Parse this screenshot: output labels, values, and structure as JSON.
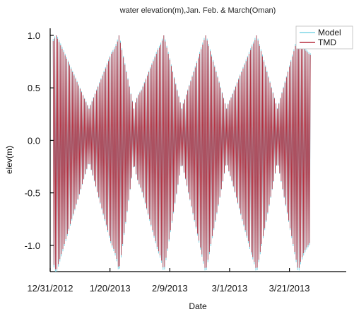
{
  "chart_data": {
    "type": "line",
    "title": "water elevation(m),Jan. Feb. & March(Oman)",
    "xlabel": "Date",
    "ylabel": "elev(m)",
    "x_range": [
      "2012-12-31",
      "2013-04-09"
    ],
    "data_x_range": [
      "2013-01-01",
      "2013-03-28"
    ],
    "ylim": [
      -1.25,
      1.0
    ],
    "x_ticks": [
      "12/31/2012",
      "1/20/2013",
      "2/9/2013",
      "3/1/2013",
      "3/21/2013"
    ],
    "y_ticks": [
      "-1.0",
      "-0.5",
      "0.0",
      "0.5",
      "1.0"
    ],
    "grid": false,
    "legend": "top-right",
    "sampling": "every 6 hours",
    "series": [
      {
        "name": "Model",
        "color": "#7fd6e6",
        "x_start": "2013-01-01",
        "x_end": "2013-03-28",
        "pattern": "semi-diurnal tide with spring-neap modulation",
        "spring_tides": [
          "2013-01-02",
          "2013-01-23",
          "2013-02-07",
          "2013-02-21",
          "2013-03-10",
          "2013-03-24"
        ],
        "neap_tides": [
          "2013-01-13",
          "2013-01-28",
          "2013-02-13",
          "2013-02-28",
          "2013-03-17"
        ],
        "max": 1.0,
        "min": -1.25,
        "neap_range": [
          -0.2,
          0.3
        ]
      },
      {
        "name": "TMD",
        "color": "#b52e3e",
        "x_start": "2013-01-01",
        "x_end": "2013-03-28",
        "pattern": "semi-diurnal tide with spring-neap modulation",
        "spring_tides": [
          "2013-01-02",
          "2013-01-23",
          "2013-02-07",
          "2013-02-21",
          "2013-03-10",
          "2013-03-24"
        ],
        "neap_tides": [
          "2013-01-13",
          "2013-01-28",
          "2013-02-13",
          "2013-02-28",
          "2013-03-17"
        ],
        "max": 1.0,
        "min": -1.25,
        "neap_range": [
          -0.2,
          0.3
        ]
      }
    ]
  }
}
